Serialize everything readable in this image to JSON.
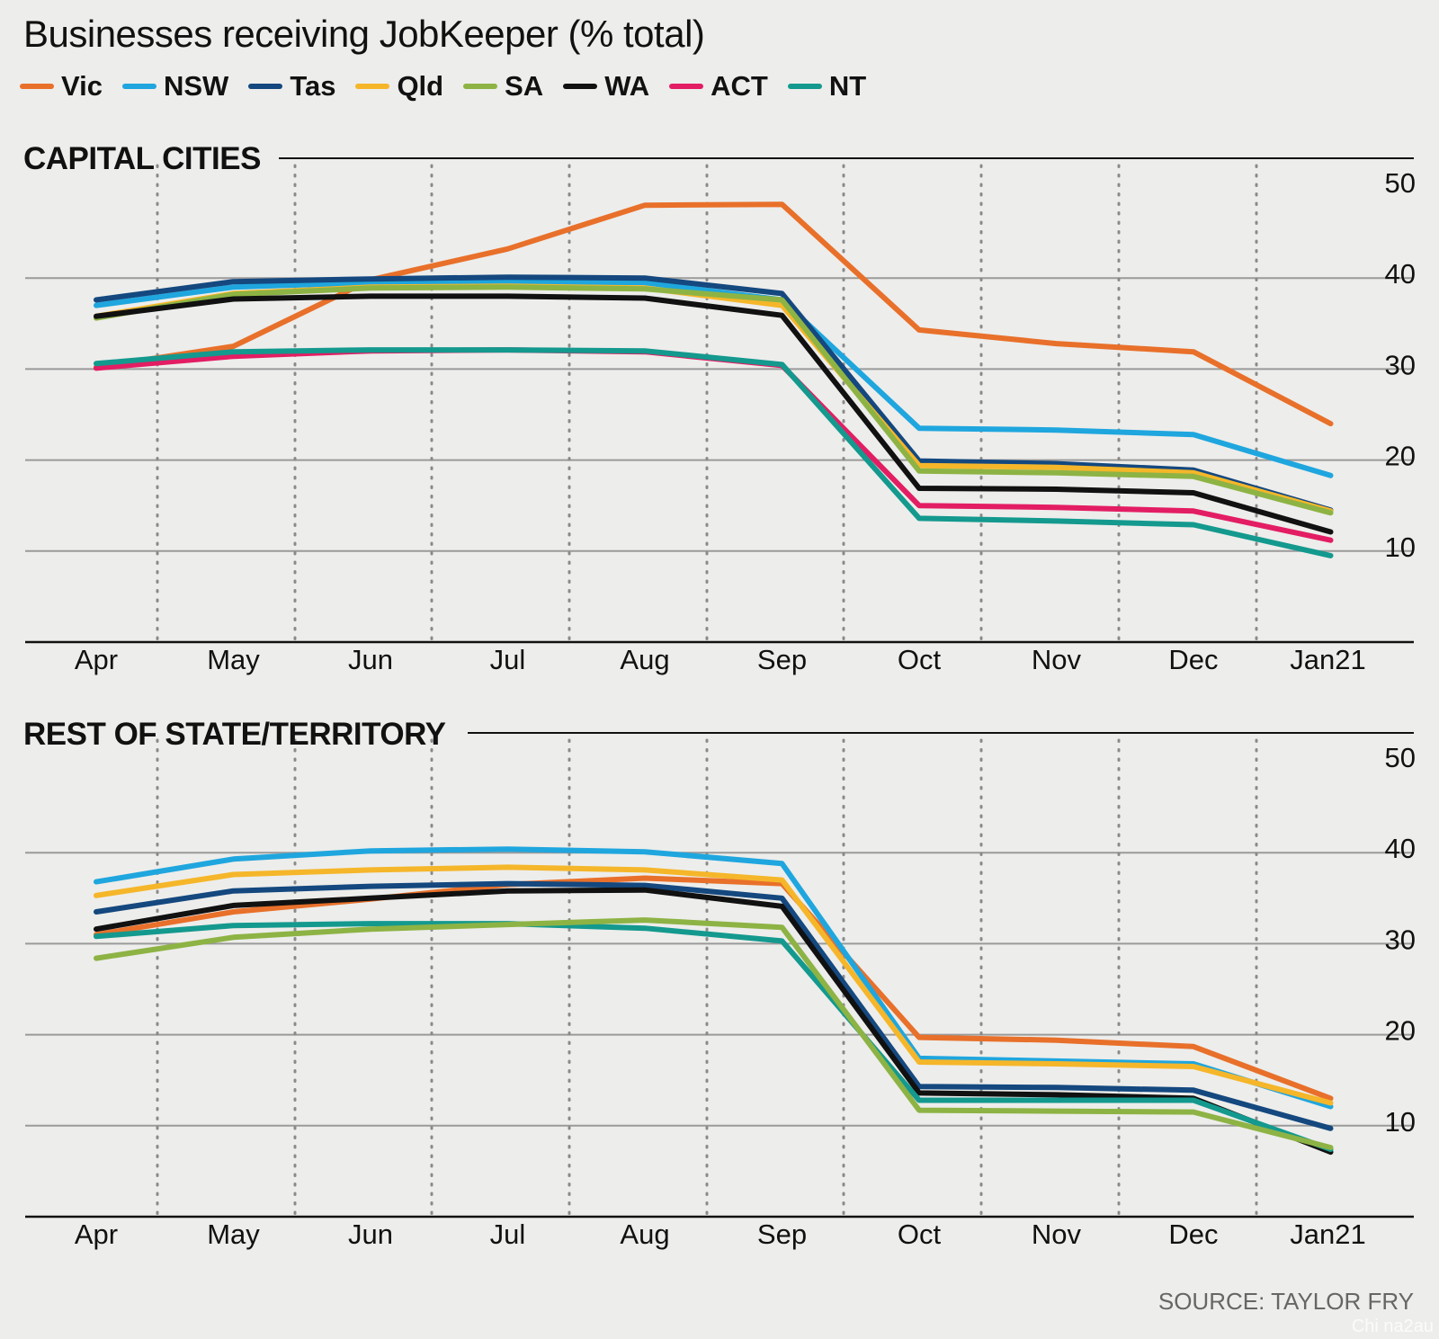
{
  "title": "Businesses receiving JobKeeper (% total)",
  "legend": [
    {
      "name": "Vic",
      "color": "#e8702a"
    },
    {
      "name": "NSW",
      "color": "#1fa6de"
    },
    {
      "name": "Tas",
      "color": "#14487f"
    },
    {
      "name": "Qld",
      "color": "#f5b62a"
    },
    {
      "name": "SA",
      "color": "#8db344"
    },
    {
      "name": "WA",
      "color": "#111111"
    },
    {
      "name": "ACT",
      "color": "#e31d63"
    },
    {
      "name": "NT",
      "color": "#14998e"
    }
  ],
  "source": "SOURCE: TAYLOR FRY",
  "watermark": "Chi na2au",
  "chart_data": [
    {
      "type": "line",
      "title": "CAPITAL CITIES",
      "categories": [
        "Apr",
        "May",
        "Jun",
        "Jul",
        "Aug",
        "Sep",
        "Oct",
        "Nov",
        "Dec",
        "Jan21"
      ],
      "y_ticks": [
        10,
        20,
        30,
        40,
        50
      ],
      "ylim": [
        0,
        50
      ],
      "grid": "horizontal solid, vertical dotted",
      "series": [
        {
          "name": "Vic",
          "color": "#e8702a",
          "values": [
            30.2,
            32.5,
            39.8,
            43.2,
            48.0,
            48.1,
            34.3,
            32.8,
            31.9,
            24.0
          ]
        },
        {
          "name": "NSW",
          "color": "#1fa6de",
          "values": [
            37.0,
            39.0,
            39.5,
            39.6,
            39.5,
            37.6,
            23.5,
            23.3,
            22.8,
            18.3
          ]
        },
        {
          "name": "Tas",
          "color": "#14487f",
          "values": [
            37.6,
            39.6,
            39.9,
            40.1,
            40.0,
            38.3,
            19.9,
            19.6,
            18.9,
            14.5
          ]
        },
        {
          "name": "Qld",
          "color": "#f5b62a",
          "values": [
            35.8,
            38.3,
            39.0,
            39.1,
            38.9,
            37.0,
            19.4,
            19.2,
            18.6,
            14.4
          ]
        },
        {
          "name": "SA",
          "color": "#8db344",
          "values": [
            35.6,
            38.2,
            38.9,
            39.0,
            38.8,
            37.6,
            18.8,
            18.6,
            18.2,
            14.2
          ]
        },
        {
          "name": "WA",
          "color": "#111111",
          "values": [
            35.8,
            37.7,
            38.0,
            38.0,
            37.8,
            35.9,
            16.9,
            16.8,
            16.4,
            12.1
          ]
        },
        {
          "name": "ACT",
          "color": "#e31d63",
          "values": [
            30.1,
            31.4,
            32.0,
            32.1,
            31.9,
            30.4,
            15.0,
            14.8,
            14.4,
            11.2
          ]
        },
        {
          "name": "NT",
          "color": "#14998e",
          "values": [
            30.6,
            31.9,
            32.1,
            32.1,
            32.0,
            30.5,
            13.6,
            13.3,
            12.9,
            9.5
          ]
        }
      ]
    },
    {
      "type": "line",
      "title": "REST OF STATE/TERRITORY",
      "categories": [
        "Apr",
        "May",
        "Jun",
        "Jul",
        "Aug",
        "Sep",
        "Oct",
        "Nov",
        "Dec",
        "Jan21"
      ],
      "y_ticks": [
        10,
        20,
        30,
        40,
        50
      ],
      "ylim": [
        0,
        50
      ],
      "grid": "horizontal solid, vertical dotted",
      "series": [
        {
          "name": "Vic",
          "color": "#e8702a",
          "values": [
            31.0,
            33.5,
            34.9,
            36.5,
            37.2,
            36.6,
            19.7,
            19.4,
            18.7,
            13.0
          ]
        },
        {
          "name": "NSW",
          "color": "#1fa6de",
          "values": [
            36.8,
            39.3,
            40.2,
            40.4,
            40.1,
            38.8,
            17.4,
            17.1,
            16.8,
            12.1
          ]
        },
        {
          "name": "Qld",
          "color": "#f5b62a",
          "values": [
            35.3,
            37.6,
            38.1,
            38.4,
            38.1,
            37.0,
            17.0,
            16.8,
            16.5,
            12.5
          ]
        },
        {
          "name": "Tas",
          "color": "#14487f",
          "values": [
            33.5,
            35.8,
            36.3,
            36.6,
            36.4,
            35.0,
            14.3,
            14.2,
            13.9,
            9.7
          ]
        },
        {
          "name": "WA",
          "color": "#111111",
          "values": [
            31.6,
            34.2,
            35.0,
            35.8,
            35.9,
            34.1,
            13.6,
            13.4,
            13.0,
            7.1
          ]
        },
        {
          "name": "NT",
          "color": "#14998e",
          "values": [
            30.8,
            32.0,
            32.2,
            32.2,
            31.7,
            30.3,
            12.8,
            12.8,
            12.8,
            7.4
          ]
        },
        {
          "name": "SA",
          "color": "#8db344",
          "values": [
            28.4,
            30.7,
            31.6,
            32.1,
            32.6,
            31.8,
            11.7,
            11.6,
            11.5,
            7.6
          ]
        }
      ]
    }
  ]
}
